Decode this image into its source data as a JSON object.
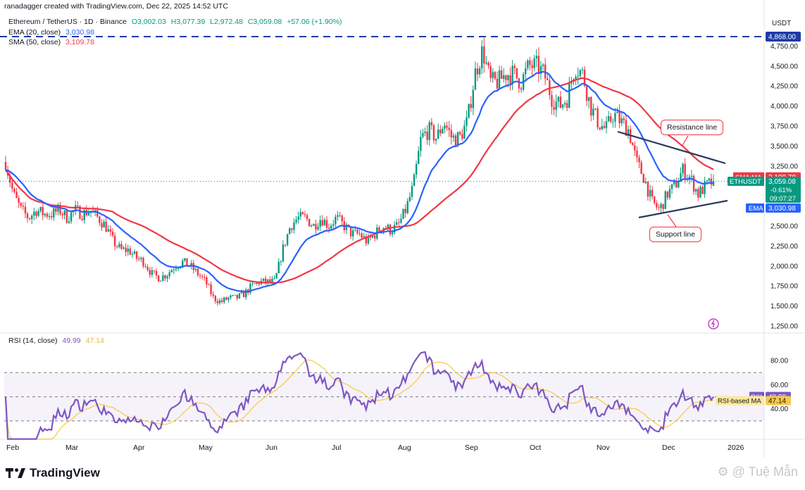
{
  "attribution": "ranadagger created with TradingView.com, Dec 22, 2025 14:52 UTC",
  "header": {
    "symbol": "Ethereum / TetherUS · 1D · Binance",
    "open": "O3,002.03",
    "high": "H3,077.39",
    "low": "L2,972.48",
    "close": "C3,059.08",
    "change": "+57.06 (+1.90%)"
  },
  "indicators": {
    "ema_label": "EMA (20, close)",
    "ema_value": "3,030.98",
    "sma_label": "SMA (50, close)",
    "sma_value": "3,109.78",
    "rsi_label": "RSI (14, close)",
    "rsi_value": "49.99",
    "rsi_ma_value": "47.14"
  },
  "price_scale": {
    "currency": "USDT",
    "ticks": [
      "4,750.00",
      "4,500.00",
      "4,250.00",
      "4,000.00",
      "3,750.00",
      "3,500.00",
      "3,250.00",
      "2,750.00",
      "2,500.00",
      "2,250.00",
      "2,000.00",
      "1,750.00",
      "1,500.00",
      "1,250.00"
    ],
    "high_line_label": "4,868.00",
    "sma_tag": {
      "name": "SMA:MA",
      "value": "3,109.78"
    },
    "last_tag": {
      "name": "ETHUSDT",
      "value": "3,059.08",
      "change": "-0.61%",
      "countdown": "09:07:27"
    },
    "ema_tag": {
      "name": "EMA",
      "value": "3,030.98"
    }
  },
  "rsi_scale": {
    "ticks": [
      "80.00",
      "60.00",
      "40.00"
    ],
    "rsi_tag": {
      "name": "RSI",
      "value": "49.99"
    },
    "rsi_ma_tag": {
      "name": "RSI-based MA",
      "value": "47.14"
    }
  },
  "time_axis": [
    "Feb",
    "Mar",
    "Apr",
    "May",
    "Jun",
    "Jul",
    "Aug",
    "Sep",
    "Oct",
    "Nov",
    "Dec",
    "2026"
  ],
  "annotations": {
    "resistance": "Resistance line",
    "support": "Support line"
  },
  "footer": {
    "logo_text": "TradingView",
    "watermark": "Tuệ Mẫn"
  },
  "colors": {
    "up": "#089981",
    "down": "#f23645",
    "ema": "#2962ff",
    "sma": "#f23645",
    "rsi": "#7e57c2",
    "rsi_ma": "#f7c948",
    "dashed": "#1e3aa8"
  },
  "chart_data": {
    "type": "candlestick",
    "title": "Ethereum / TetherUS · 1D · Binance",
    "ylim": [
      1250,
      4900
    ],
    "dates_start": "2025-02-01",
    "close_approx": [
      3300,
      2900,
      2700,
      2600,
      2700,
      2650,
      2650,
      2700,
      2600,
      2700,
      2650,
      2700,
      2600,
      2500,
      2300,
      2200,
      2200,
      2100,
      2050,
      1900,
      1850,
      1900,
      2000,
      2050,
      2000,
      1900,
      1800,
      1600,
      1550,
      1600,
      1600,
      1650,
      1750,
      1800,
      1800,
      1800,
      2200,
      2500,
      2600,
      2600,
      2500,
      2600,
      2500,
      2600,
      2500,
      2400,
      2400,
      2300,
      2400,
      2500,
      2450,
      2500,
      2700,
      3000,
      3600,
      3700,
      3600,
      3800,
      3600,
      3600,
      3800,
      4400,
      4700,
      4300,
      4300,
      4400,
      4400,
      4300,
      4500,
      4500,
      4400,
      4100,
      4000,
      4100,
      4500,
      4400,
      4000,
      3800,
      3700,
      3900,
      3800,
      3700,
      3300,
      3100,
      2800,
      2700,
      2900,
      3000,
      3200,
      3100,
      2900,
      3000,
      3059
    ],
    "ema20_last": 3030.98,
    "sma50_last": 3109.78,
    "high_line": 4868,
    "rsi_last": 49.99,
    "rsi_ma_last": 47.14,
    "rsi_bands": [
      70,
      50,
      30
    ]
  }
}
